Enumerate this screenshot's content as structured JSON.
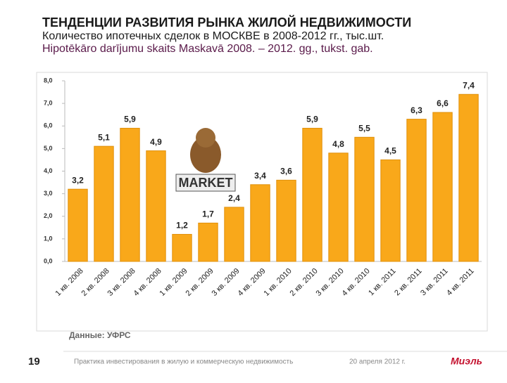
{
  "header": {
    "title": "ТЕНДЕНЦИИ РАЗВИТИЯ РЫНКА ЖИЛОЙ НЕДВИЖИМОСТИ",
    "subtitle": "Количество ипотечных сделок в МОСКВЕ в 2008-2012 гг., тыс.шт.",
    "subtitle_lv": "Hipotēkāro darījumu skaits Maskavā 2008. – 2012. gg., tukst. gab."
  },
  "chart_data": {
    "type": "bar",
    "categories": [
      "1 кв. 2008",
      "2 кв. 2008",
      "3 кв. 2008",
      "4 кв. 2008",
      "1 кв. 2009",
      "2 кв. 2009",
      "3 кв. 2009",
      "4 кв. 2009",
      "1 кв. 2010",
      "2 кв. 2010",
      "3 кв. 2010",
      "4 кв. 2010",
      "1 кв. 2011",
      "2 кв. 2011",
      "3 кв. 2011",
      "4 кв. 2011"
    ],
    "values": [
      3.2,
      5.1,
      5.9,
      4.9,
      1.2,
      1.7,
      2.4,
      3.4,
      3.6,
      5.9,
      4.8,
      5.5,
      4.5,
      6.3,
      6.6,
      7.4
    ],
    "value_labels": [
      "3,2",
      "5,1",
      "5,9",
      "4,9",
      "1,2",
      "1,7",
      "2,4",
      "3,4",
      "3,6",
      "5,9",
      "4,8",
      "5,5",
      "4,5",
      "6,3",
      "6,6",
      "7,4"
    ],
    "color": "#f9a81a",
    "ylim": [
      0,
      8
    ],
    "yticks": [
      {
        "value": 0,
        "label": "0,0"
      },
      {
        "value": 1,
        "label": "1,0"
      },
      {
        "value": 2,
        "label": "2,0"
      },
      {
        "value": 3,
        "label": "3,0"
      },
      {
        "value": 4,
        "label": "4,0"
      },
      {
        "value": 5,
        "label": "5,0"
      },
      {
        "value": 6,
        "label": "6,0"
      },
      {
        "value": 7,
        "label": "7,0"
      },
      {
        "value": 8,
        "label": "8,0"
      }
    ],
    "grid": false,
    "annotation": "MARKET"
  },
  "source": "Данные:  УФРС",
  "footer": {
    "page": "19",
    "text": "Практика инвестирования в жилую и коммерческую недвижимость",
    "date": "20 апреля 2012 г.",
    "logo": "Миэль"
  }
}
